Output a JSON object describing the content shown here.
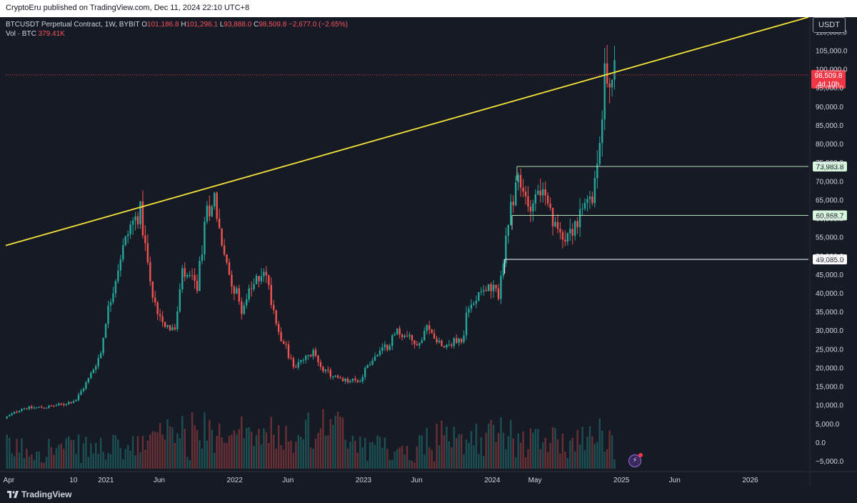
{
  "header": {
    "publish_line": "CryptoEru published on TradingView.com, Dec 11, 2024 22:10 UTC+8"
  },
  "legend": {
    "symbol": "BTCUSDT Perpetual Contract, 1W, BYBIT",
    "open_label": "O",
    "open": "101,186.8",
    "high_label": "H",
    "high": "101,296.1",
    "low_label": "L",
    "low": "93,888.0",
    "close_label": "C",
    "close": "98,509.8",
    "change": "−2,677.0 (−2.65%)",
    "vol_label": "Vol · BTC",
    "vol": "379.41K"
  },
  "currency_button": "USDT",
  "footer": {
    "brand": "TradingView"
  },
  "icons": {
    "logo": "tradingview-logo-icon",
    "alert": "lightning-icon"
  },
  "colors": {
    "up": "#26a69a",
    "down": "#ef5350",
    "trend": "#f5e43b",
    "level": "#b2dfb5",
    "price": "#f23645"
  },
  "chart_data": {
    "type": "candlestick",
    "y_ticks": [
      "110,000.0",
      "105,000.0",
      "100,000.0",
      "95,000.0",
      "90,000.0",
      "85,000.0",
      "80,000.0",
      "75,000.0",
      "70,000.0",
      "65,000.0",
      "60,000.0",
      "55,000.0",
      "50,000.0",
      "45,000.0",
      "40,000.0",
      "35,000.0",
      "30,000.0",
      "25,000.0",
      "20,000.0",
      "15,000.0",
      "10,000.0",
      "5,000.0",
      "0.0",
      "−5,000.0"
    ],
    "y_tick_values": [
      110000,
      105000,
      100000,
      95000,
      90000,
      85000,
      80000,
      75000,
      70000,
      65000,
      60000,
      55000,
      50000,
      45000,
      40000,
      35000,
      30000,
      25000,
      20000,
      15000,
      10000,
      5000,
      0,
      -5000
    ],
    "ylim": [
      -7000,
      114000
    ],
    "x_ticks": [
      "Apr",
      "10",
      "2021",
      "Jun",
      "2022",
      "Jun",
      "2023",
      "Jun",
      "2024",
      "May",
      "2025",
      "Jun",
      "2026"
    ],
    "x_tick_dates": [
      "2020-04-01",
      "2020-10-01",
      "2021-01-01",
      "2021-06-01",
      "2022-01-01",
      "2022-06-01",
      "2023-01-01",
      "2023-06-01",
      "2024-01-01",
      "2024-05-01",
      "2025-01-01",
      "2025-06-01",
      "2026-01-01"
    ],
    "x_range": [
      "2020-03-23",
      "2026-06-15"
    ],
    "trendline": {
      "from": [
        "2020-03-23",
        52800
      ],
      "to": [
        "2026-06-15",
        114000
      ]
    },
    "levels": [
      {
        "label": "73,983.8",
        "value": 73983.8,
        "from": "2024-03-11",
        "box": "green"
      },
      {
        "label": "60,868.7",
        "value": 60868.7,
        "from": "2024-02-26",
        "box": "green"
      },
      {
        "label": "49,085.0",
        "value": 49085.0,
        "from": "2024-02-05",
        "box": "white"
      }
    ],
    "last_price": {
      "label": "98,509.8",
      "countdown": "4d 10h",
      "value": 98509.8
    },
    "price_anchors": [
      [
        "2020-03-23",
        6500
      ],
      [
        "2020-05-11",
        9200
      ],
      [
        "2020-07-20",
        9500
      ],
      [
        "2020-09-07",
        10300
      ],
      [
        "2020-10-12",
        11500
      ],
      [
        "2020-11-16",
        17000
      ],
      [
        "2020-12-21",
        24000
      ],
      [
        "2021-01-04",
        33000
      ],
      [
        "2021-02-15",
        50000
      ],
      [
        "2021-03-15",
        58000
      ],
      [
        "2021-04-12",
        62000
      ],
      [
        "2021-05-17",
        38000
      ],
      [
        "2021-06-21",
        32000
      ],
      [
        "2021-07-19",
        30000
      ],
      [
        "2021-08-09",
        45000
      ],
      [
        "2021-09-20",
        42000
      ],
      [
        "2021-10-18",
        62000
      ],
      [
        "2021-11-08",
        66000
      ],
      [
        "2021-12-06",
        49000
      ],
      [
        "2022-01-24",
        36000
      ],
      [
        "2022-03-28",
        47000
      ],
      [
        "2022-05-09",
        30000
      ],
      [
        "2022-06-13",
        22000
      ],
      [
        "2022-06-20",
        20000
      ],
      [
        "2022-08-15",
        24000
      ],
      [
        "2022-09-19",
        19000
      ],
      [
        "2022-11-07",
        16500
      ],
      [
        "2022-12-26",
        16500
      ],
      [
        "2023-01-16",
        21000
      ],
      [
        "2023-03-13",
        26000
      ],
      [
        "2023-04-10",
        30000
      ],
      [
        "2023-06-12",
        26000
      ],
      [
        "2023-07-03",
        30500
      ],
      [
        "2023-08-21",
        26000
      ],
      [
        "2023-10-16",
        28000
      ],
      [
        "2023-10-23",
        34000
      ],
      [
        "2023-12-04",
        42000
      ],
      [
        "2024-01-22",
        40000
      ],
      [
        "2024-02-26",
        62000
      ],
      [
        "2024-03-11",
        70000
      ],
      [
        "2024-04-15",
        64000
      ],
      [
        "2024-05-20",
        68000
      ],
      [
        "2024-07-01",
        57000
      ],
      [
        "2024-08-05",
        56000
      ],
      [
        "2024-09-09",
        60000
      ],
      [
        "2024-10-21",
        68000
      ],
      [
        "2024-11-11",
        90000
      ],
      [
        "2024-11-18",
        98000
      ],
      [
        "2024-12-09",
        98509.8
      ]
    ]
  }
}
